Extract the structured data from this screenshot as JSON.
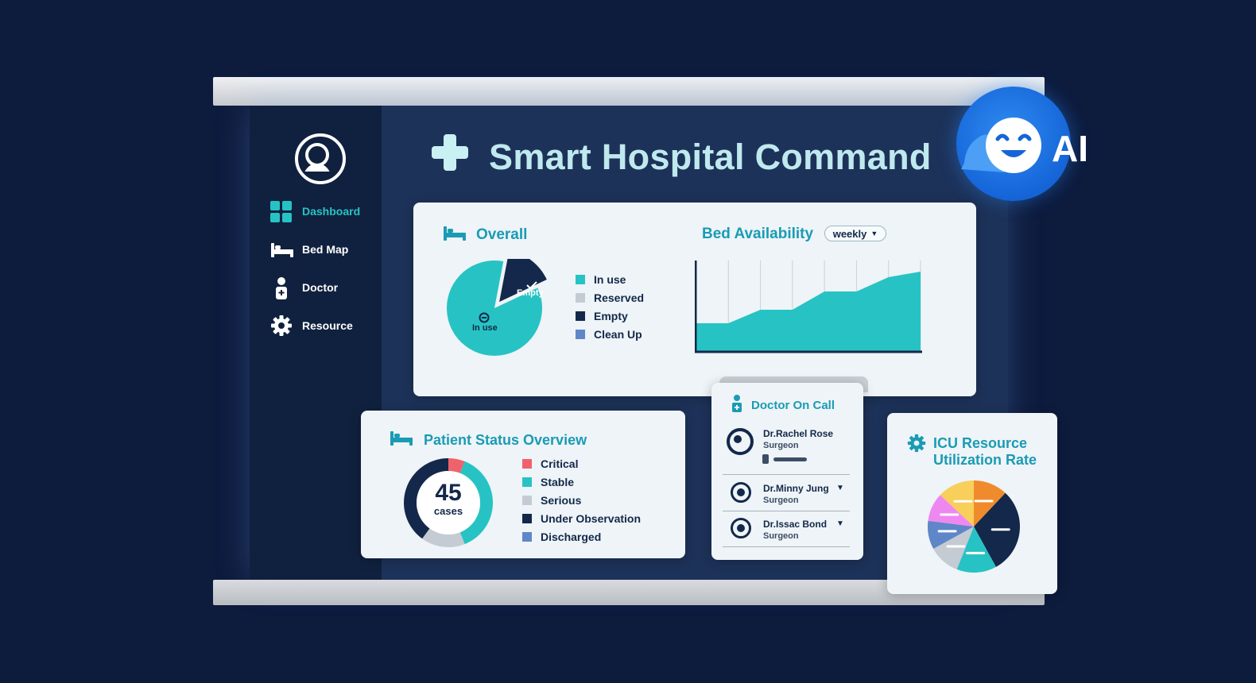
{
  "app": {
    "title": "Smart Hospital Command",
    "ai_label": "AI"
  },
  "sidebar": {
    "items": [
      {
        "label": "Dashboard",
        "icon": "dashboard-icon",
        "active": true
      },
      {
        "label": "Bed Map",
        "icon": "bed-icon",
        "active": false
      },
      {
        "label": "Doctor",
        "icon": "doctor-icon",
        "active": false
      },
      {
        "label": "Resource",
        "icon": "gear-icon",
        "active": false
      }
    ]
  },
  "overall": {
    "heading": "Overall",
    "slice_labels": {
      "empty": "Empty",
      "in_use": "In use"
    },
    "legend": [
      {
        "label": "In use",
        "color": "#27c3c4"
      },
      {
        "label": "Reserved",
        "color": "#c4cbd3"
      },
      {
        "label": "Empty",
        "color": "#13284a"
      },
      {
        "label": "Clean Up",
        "color": "#5f86c9"
      }
    ]
  },
  "bed_availability": {
    "heading": "Bed Availability",
    "period_select": "weekly"
  },
  "patient_status": {
    "heading": "Patient Status Overview",
    "total": "45",
    "total_unit": "cases",
    "legend": [
      {
        "label": "Critical",
        "color": "#f0626b"
      },
      {
        "label": "Stable",
        "color": "#27c3c4"
      },
      {
        "label": "Serious",
        "color": "#c4cbd3"
      },
      {
        "label": "Under Observation",
        "color": "#13284a"
      },
      {
        "label": "Discharged",
        "color": "#5f86c9"
      }
    ]
  },
  "doctor_on_call": {
    "heading": "Doctor On Call",
    "doctors": [
      {
        "name": "Dr.Rachel Rose",
        "role": "Surgeon"
      },
      {
        "name": "Dr.Minny Jung",
        "role": "Surgeon"
      },
      {
        "name": "Dr.Issac Bond",
        "role": "Surgeon"
      }
    ]
  },
  "icu": {
    "heading_line1": "ICU Resource",
    "heading_line2": "Utilization Rate"
  },
  "chart_data": [
    {
      "type": "pie",
      "slices": [
        {
          "label": "In use",
          "value": 85,
          "color": "#27c3c4"
        },
        {
          "label": "Empty",
          "value": 15,
          "color": "#13284a"
        }
      ]
    },
    {
      "type": "area",
      "x": [
        1,
        2,
        3,
        4,
        5,
        6,
        7,
        8
      ],
      "values": [
        35,
        35,
        52,
        52,
        75,
        75,
        93,
        100
      ],
      "ylim": [
        0,
        100
      ],
      "grid": true,
      "color": "#27c3c4"
    },
    {
      "type": "pie",
      "donut": true,
      "slices": [
        {
          "label": "Critical",
          "value": 6,
          "color": "#f0626b"
        },
        {
          "label": "Stable",
          "value": 38,
          "color": "#27c3c4"
        },
        {
          "label": "Serious",
          "value": 16,
          "color": "#c4cbd3"
        },
        {
          "label": "Under Observation",
          "value": 40,
          "color": "#13284a"
        }
      ]
    },
    {
      "type": "pie",
      "slices": [
        {
          "value": 12,
          "color": "#ef8b2c"
        },
        {
          "value": 30,
          "color": "#13284a"
        },
        {
          "value": 14,
          "color": "#27c3c4"
        },
        {
          "value": 11,
          "color": "#c4cbd3"
        },
        {
          "value": 10,
          "color": "#5f86c9"
        },
        {
          "value": 10,
          "color": "#ee88f0"
        },
        {
          "value": 13,
          "color": "#f7cf5a"
        }
      ]
    }
  ]
}
